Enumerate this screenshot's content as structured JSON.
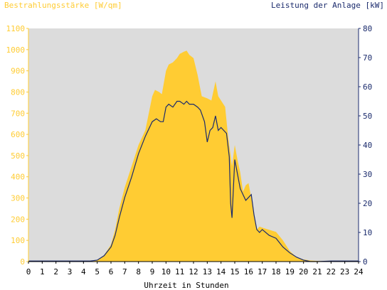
{
  "chart_data": {
    "type": "area",
    "left_axis_title": "Bestrahlungsstärke [W/qm]",
    "right_axis_title": "Leistung der Anlage [kW]",
    "xlabel": "Uhrzeit in Stunden",
    "x_ticks": [
      "0",
      "1",
      "2",
      "3",
      "4",
      "5",
      "6",
      "7",
      "8",
      "9",
      "10",
      "11",
      "12",
      "13",
      "14",
      "15",
      "16",
      "17",
      "18",
      "19",
      "20",
      "21",
      "22",
      "23",
      "24"
    ],
    "y_left_ticks": [
      "0",
      "100",
      "200",
      "300",
      "400",
      "500",
      "600",
      "700",
      "800",
      "900",
      "1000",
      "1100"
    ],
    "y_right_ticks": [
      "0",
      "10",
      "20",
      "30",
      "40",
      "50",
      "60",
      "70",
      "80"
    ],
    "xlim": [
      0,
      24
    ],
    "ylim_left": [
      0,
      1100
    ],
    "ylim_right": [
      0,
      80
    ],
    "colors": {
      "plot_background": "#dcdcdc",
      "irradiance_fill": "#ffcc33",
      "power_line": "#1a2a6c",
      "left_axis_text": "#ffcc33",
      "right_axis_text": "#1a2a6c",
      "axis_text": "#000000"
    },
    "series": [
      {
        "axis": "left",
        "style": "area",
        "x": [
          0,
          4.5,
          5,
          5.5,
          6,
          6.3,
          6.6,
          7,
          7.5,
          8,
          8.5,
          9,
          9.2,
          9.5,
          9.7,
          10,
          10.2,
          10.5,
          10.8,
          11,
          11.3,
          11.5,
          11.7,
          12,
          12.3,
          12.6,
          13,
          13.3,
          13.6,
          13.8,
          14,
          14.3,
          14.5,
          14.8,
          15,
          15.2,
          15.4,
          15.6,
          15.8,
          16,
          16.2,
          16.4,
          16.6,
          16.8,
          17,
          17.5,
          18,
          18.5,
          19,
          19.5,
          20,
          20.5,
          21,
          22,
          23,
          24
        ],
        "y": [
          0,
          0,
          5,
          30,
          80,
          150,
          250,
          350,
          450,
          550,
          620,
          780,
          810,
          800,
          790,
          900,
          930,
          940,
          960,
          980,
          990,
          995,
          975,
          960,
          880,
          780,
          770,
          760,
          850,
          780,
          760,
          730,
          600,
          450,
          550,
          480,
          420,
          330,
          360,
          370,
          300,
          220,
          150,
          165,
          160,
          150,
          140,
          100,
          50,
          20,
          10,
          5,
          3,
          0,
          0,
          0
        ]
      },
      {
        "axis": "right",
        "style": "line",
        "x": [
          0,
          4.5,
          5,
          5.5,
          6,
          6.3,
          6.6,
          7,
          7.5,
          8,
          8.5,
          9,
          9.3,
          9.6,
          9.8,
          10,
          10.2,
          10.5,
          10.8,
          11,
          11.3,
          11.5,
          11.7,
          12,
          12.3,
          12.5,
          12.8,
          13,
          13.2,
          13.4,
          13.6,
          13.8,
          14,
          14.2,
          14.4,
          14.6,
          14.7,
          14.8,
          15,
          15.2,
          15.4,
          15.6,
          15.8,
          16,
          16.2,
          16.4,
          16.6,
          16.8,
          17,
          17.5,
          18,
          18.5,
          19,
          19.5,
          20,
          20.5,
          21,
          22,
          23,
          24
        ],
        "y": [
          0.2,
          0.2,
          0.5,
          2,
          5,
          9,
          15,
          22,
          29,
          37,
          43,
          48,
          49,
          48,
          48,
          53,
          54,
          53,
          55,
          55,
          54,
          55,
          54,
          54,
          53,
          52,
          48,
          41,
          45,
          46,
          50,
          45,
          46,
          45,
          44,
          36,
          20,
          15,
          35,
          30,
          25,
          23,
          21,
          22,
          23,
          16,
          11,
          10,
          11,
          9,
          8,
          5,
          3,
          1.5,
          0.5,
          0,
          0,
          0.2,
          0.2,
          0.2
        ]
      }
    ],
    "grid": false
  }
}
